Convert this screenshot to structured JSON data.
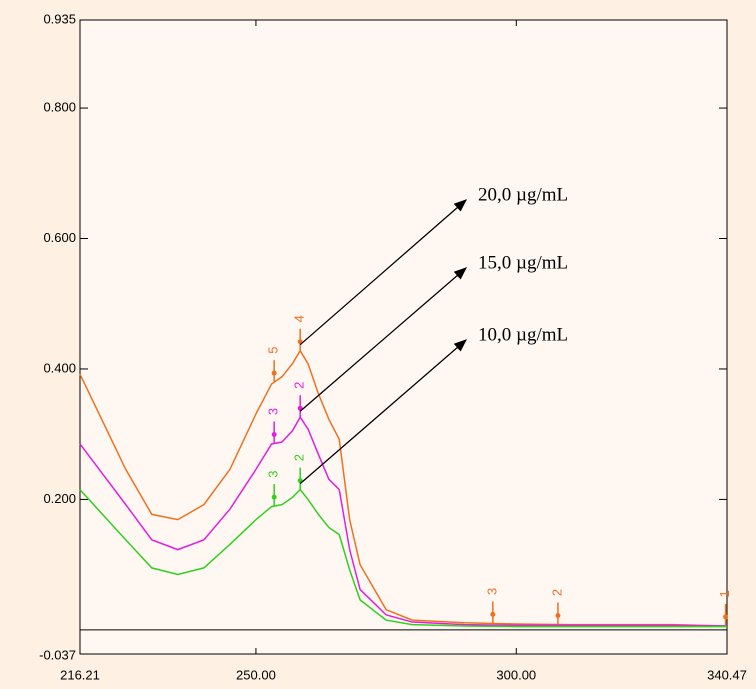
{
  "chart_data": {
    "type": "line",
    "xlim": [
      216.21,
      340.47
    ],
    "xticks": [
      216.21,
      {
        "value": 250,
        "label": "250.00"
      },
      {
        "value": 300,
        "label": "300.00"
      },
      340.47
    ],
    "ylim": [
      -0.037,
      0.935
    ],
    "yticks": [
      -0.037,
      {
        "value": 0.2,
        "label": "0.200"
      },
      {
        "value": 0.4,
        "label": "0.400"
      },
      {
        "value": 0.6,
        "label": "0.600"
      },
      {
        "value": 0.8,
        "label": "0.800"
      },
      0.935
    ],
    "x": [
      216.21,
      225,
      230,
      235,
      240,
      245,
      250,
      253,
      255,
      257,
      258.5,
      260,
      262,
      264,
      266,
      268,
      270,
      275,
      280,
      290,
      300,
      310,
      320,
      330,
      340.47
    ],
    "series": [
      {
        "name": "20,0 µg/mL",
        "color": "#f07020",
        "values": [
          0.392,
          0.246,
          0.177,
          0.169,
          0.192,
          0.246,
          0.331,
          0.377,
          0.388,
          0.408,
          0.428,
          0.408,
          0.362,
          0.323,
          0.292,
          0.169,
          0.1,
          0.031,
          0.015,
          0.011,
          0.009,
          0.008,
          0.008,
          0.008,
          0.006
        ],
        "peaks": [
          {
            "x": 253.5,
            "label": "5"
          },
          {
            "x": 258.5,
            "label": "4"
          },
          {
            "x": 295.5,
            "label": "3"
          },
          {
            "x": 308,
            "label": "2"
          },
          {
            "x": 340.2,
            "label": "1"
          }
        ]
      },
      {
        "name": "15,0 µg/mL",
        "color": "#e020e0",
        "values": [
          0.285,
          0.192,
          0.138,
          0.123,
          0.138,
          0.185,
          0.246,
          0.285,
          0.288,
          0.305,
          0.326,
          0.308,
          0.269,
          0.231,
          0.215,
          0.123,
          0.062,
          0.023,
          0.012,
          0.008,
          0.007,
          0.007,
          0.007,
          0.007,
          0.006
        ],
        "peaks": [
          {
            "x": 253.5,
            "label": "3"
          },
          {
            "x": 258.5,
            "label": "2"
          }
        ]
      },
      {
        "name": "10,0 µg/mL",
        "color": "#30d020",
        "values": [
          0.215,
          0.138,
          0.095,
          0.085,
          0.095,
          0.131,
          0.169,
          0.189,
          0.192,
          0.203,
          0.215,
          0.2,
          0.177,
          0.157,
          0.146,
          0.092,
          0.046,
          0.015,
          0.008,
          0.006,
          0.005,
          0.005,
          0.005,
          0.005,
          0.005
        ],
        "peaks": [
          {
            "x": 253.5,
            "label": "3"
          },
          {
            "x": 258.5,
            "label": "2"
          }
        ]
      }
    ]
  }
}
